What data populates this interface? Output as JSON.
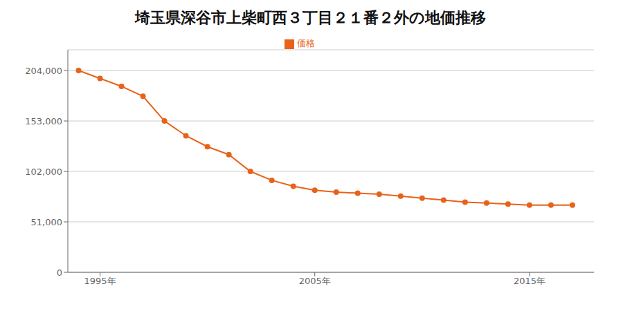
{
  "chart_data": {
    "type": "line",
    "title": "埼玉県深谷市上柴町西３丁目２１番２外の地価推移",
    "x": [
      1994,
      1995,
      1996,
      1997,
      1998,
      1999,
      2000,
      2001,
      2002,
      2003,
      2004,
      2005,
      2006,
      2007,
      2008,
      2009,
      2010,
      2011,
      2012,
      2013,
      2014,
      2015,
      2016,
      2017
    ],
    "series": [
      {
        "name": "価格",
        "color": "#e8621a",
        "marker": "circle",
        "values": [
          204000,
          196000,
          188000,
          178000,
          153000,
          138000,
          127000,
          119000,
          102000,
          93000,
          87000,
          83000,
          81000,
          80000,
          79000,
          77000,
          75000,
          73000,
          71000,
          70000,
          69000,
          68000,
          68000,
          68000
        ]
      }
    ],
    "xlim": [
      1993.5,
      2018.0
    ],
    "xticks": [
      {
        "value": 1995,
        "label": "1995年"
      },
      {
        "value": 2005,
        "label": "2005年"
      },
      {
        "value": 2015,
        "label": "2015年"
      }
    ],
    "ylim": [
      0,
      225000
    ],
    "yticks": [
      0,
      {
        "value": 51000,
        "label": "51,000"
      },
      {
        "value": 102000,
        "label": "102,000"
      },
      {
        "value": 153000,
        "label": "153,000"
      },
      {
        "value": 204000,
        "label": "204,000"
      }
    ],
    "grid": true,
    "legend": "top"
  }
}
